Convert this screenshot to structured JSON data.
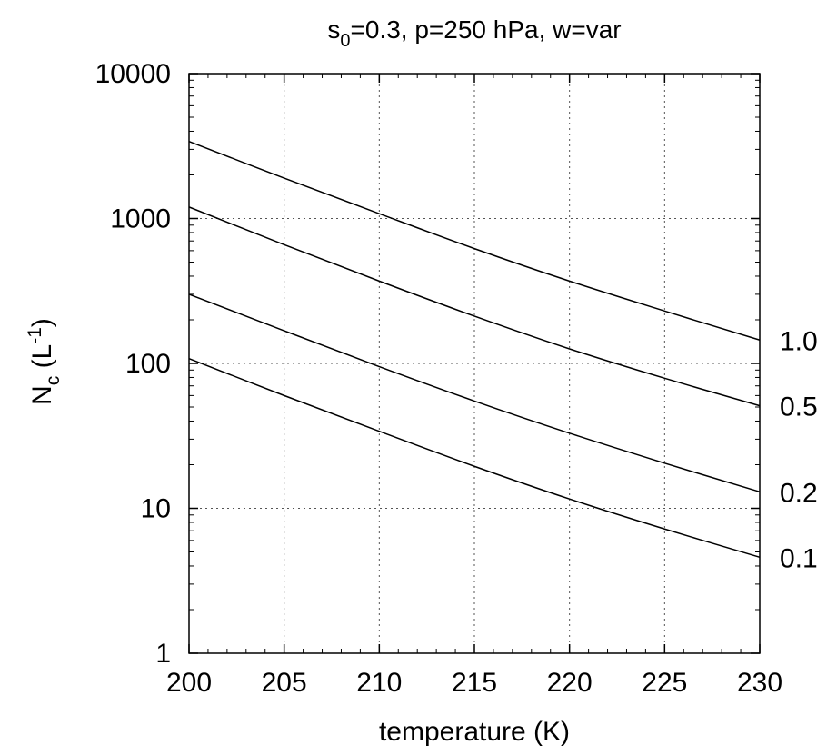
{
  "chart_data": {
    "type": "line",
    "title": {
      "main": "s",
      "sub": "0",
      "rest": "=0.3, p=250 hPa, w=var"
    },
    "xlabel": "temperature (K)",
    "ylabel": {
      "main": "N",
      "sub": "c",
      "mid": " (L",
      "sup": "-1",
      "end": ")"
    },
    "xlim": [
      200,
      230
    ],
    "ylim": [
      1,
      10000
    ],
    "yscale": "log",
    "grid": true,
    "x_ticks": [
      "200",
      "205",
      "210",
      "215",
      "220",
      "225",
      "230"
    ],
    "y_ticks": [
      "1",
      "10",
      "100",
      "1000",
      "10000"
    ],
    "x": [
      200,
      205,
      210,
      215,
      220,
      225,
      230
    ],
    "series": [
      {
        "name": "1.0",
        "values": [
          3400,
          1900,
          1080,
          620,
          370,
          230,
          145
        ]
      },
      {
        "name": "0.5",
        "values": [
          1200,
          660,
          370,
          212,
          126,
          79,
          51
        ]
      },
      {
        "name": "0.2",
        "values": [
          300,
          168,
          95,
          55,
          33,
          20.5,
          13
        ]
      },
      {
        "name": "0.1",
        "values": [
          108,
          60,
          34,
          19.5,
          11.6,
          7.2,
          4.6
        ]
      }
    ]
  }
}
